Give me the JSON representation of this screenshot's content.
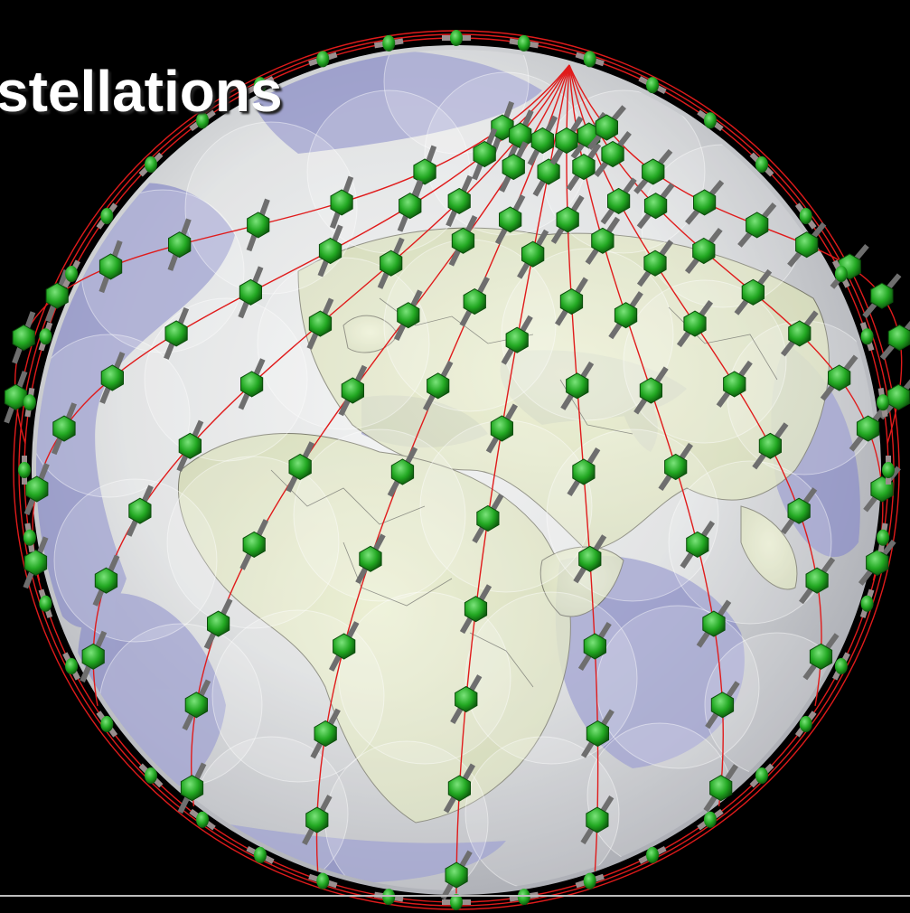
{
  "slide": {
    "title": "stellations"
  },
  "colors": {
    "background": "#000000",
    "orbit_line": "#e01b1b",
    "satellite": "#2fb82f",
    "solar_panel": "#6e6e6e",
    "ocean": "#8e90c8",
    "land": "#e7ecc8",
    "coverage_cell": "#ffffff"
  },
  "icons": {
    "satellite": "satellite-icon"
  },
  "constellation": {
    "orbital_planes": 11,
    "satellites_per_plane": 9
  }
}
